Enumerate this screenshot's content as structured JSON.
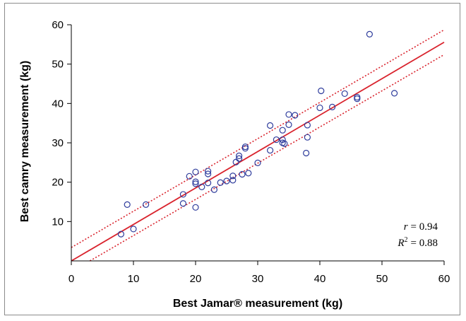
{
  "chart_data": {
    "type": "scatter",
    "xlabel": "Best Jamar® measurement (kg)",
    "ylabel": "Best camry measurement (kg)",
    "xlim": [
      0,
      60
    ],
    "ylim": [
      0,
      60
    ],
    "xticks": [
      0,
      10,
      20,
      30,
      40,
      50,
      60
    ],
    "yticks": [
      10,
      20,
      30,
      40,
      50,
      60
    ],
    "grid": false,
    "points": [
      [
        8,
        6.8
      ],
      [
        9,
        14.3
      ],
      [
        10,
        8.1
      ],
      [
        12,
        14.3
      ],
      [
        18,
        14.6
      ],
      [
        18,
        16.9
      ],
      [
        19,
        21.5
      ],
      [
        20,
        13.6
      ],
      [
        20,
        19.6
      ],
      [
        20,
        20.1
      ],
      [
        20,
        22.6
      ],
      [
        21,
        18.8
      ],
      [
        22,
        19.8
      ],
      [
        22,
        22.1
      ],
      [
        22,
        22.8
      ],
      [
        23,
        18.1
      ],
      [
        24,
        19.9
      ],
      [
        25,
        20.3
      ],
      [
        26,
        21.6
      ],
      [
        26,
        20.5
      ],
      [
        26.5,
        25.1
      ],
      [
        27,
        26.0
      ],
      [
        27,
        26.7
      ],
      [
        27.5,
        22.0
      ],
      [
        28,
        28.6
      ],
      [
        28,
        29.0
      ],
      [
        28.5,
        22.3
      ],
      [
        30,
        24.9
      ],
      [
        32,
        28.1
      ],
      [
        32,
        34.4
      ],
      [
        33,
        30.8
      ],
      [
        34,
        30.0
      ],
      [
        34,
        33.2
      ],
      [
        34,
        30.8
      ],
      [
        34.3,
        29.8
      ],
      [
        35,
        34.6
      ],
      [
        35,
        37.2
      ],
      [
        36,
        37.0
      ],
      [
        37.8,
        27.4
      ],
      [
        38,
        31.4
      ],
      [
        38,
        34.5
      ],
      [
        40,
        38.9
      ],
      [
        40.2,
        43.2
      ],
      [
        42,
        39.1
      ],
      [
        44,
        42.5
      ],
      [
        46,
        41.2
      ],
      [
        46,
        41.6
      ],
      [
        48,
        57.6
      ],
      [
        52,
        42.6
      ]
    ],
    "fit_line": {
      "slope": 0.926,
      "intercept": 0,
      "color": "#d9232d"
    },
    "ci_upper": {
      "from": [
        0,
        3.4
      ],
      "to": [
        60,
        58.7
      ],
      "color": "#d9232d",
      "style": "dotted"
    },
    "ci_lower": {
      "from": [
        3,
        0
      ],
      "to": [
        60,
        52.4
      ],
      "color": "#d9232d",
      "style": "dotted"
    },
    "marker": {
      "shape": "open-circle",
      "color": "#2e3c9c"
    },
    "annotation": {
      "r_symbol": "r",
      "r_value": "= 0.94",
      "r2_symbol": "R",
      "r2_sup": "2",
      "r2_value": "= 0.88"
    }
  }
}
